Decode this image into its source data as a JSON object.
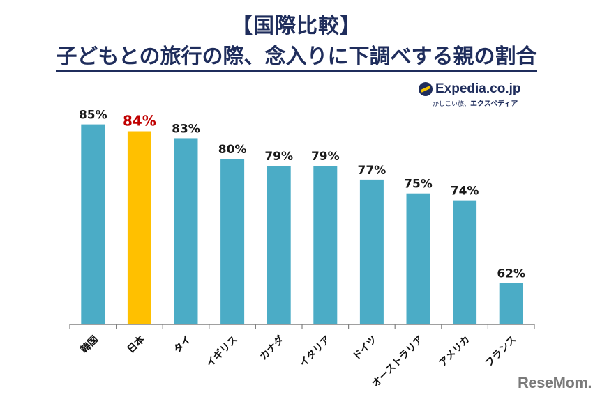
{
  "header": {
    "title_line1": "【国際比較】",
    "title_line2": "子どもとの旅行の際、念入りに下調べする親の割合"
  },
  "logo": {
    "brand": "Expedia.co.jp",
    "tagline_prefix": "かしこい旅、",
    "tagline_brand": "エクスペディア"
  },
  "watermark": "ReseMom.",
  "colors": {
    "bar_default": "#4bacc6",
    "bar_highlight": "#ffc000",
    "label_default": "#1a1a1a",
    "label_highlight": "#c00000",
    "axis": "#808080",
    "title": "#1f2d5c"
  },
  "chart_data": {
    "type": "bar",
    "title": "子どもとの旅行の際、念入りに下調べする親の割合",
    "xlabel": "",
    "ylabel": "",
    "categories": [
      "韓国",
      "日本",
      "タイ",
      "イギリス",
      "カナダ",
      "イタリア",
      "ドイツ",
      "オーストラリア",
      "アメリカ",
      "フランス"
    ],
    "values": [
      85,
      84,
      83,
      80,
      79,
      79,
      77,
      75,
      74,
      62
    ],
    "value_labels": [
      "85%",
      "84%",
      "83%",
      "80%",
      "79%",
      "79%",
      "77%",
      "75%",
      "74%",
      "62%"
    ],
    "highlight_index": 1,
    "ylim": [
      56,
      90
    ],
    "grid": false,
    "legend": "none"
  }
}
